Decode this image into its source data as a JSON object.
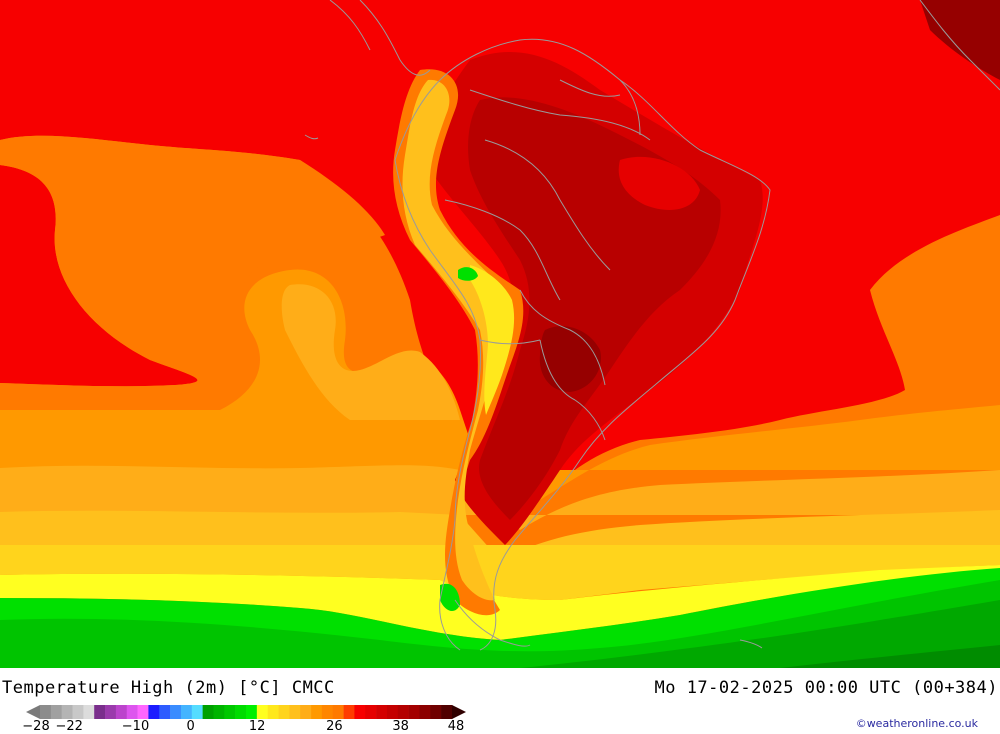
{
  "map": {
    "title": "Temperature High (2m) [°C] CMCC",
    "run_time": "Mo 17-02-2025 00:00 UTC (00+384)",
    "credit": "©weatheronline.co.uk",
    "region": "South America",
    "colors": {
      "darkest_red": "#b80000",
      "dark_red": "#cf0000",
      "red": "#f70000",
      "red_orange": "#ff3c00",
      "orange": "#ff7a00",
      "light_orange": "#ff9900",
      "amber": "#ffad18",
      "gold": "#ffc01c",
      "yellow_orange": "#ffd41c",
      "yellow": "#ffe81c",
      "bright_yellow": "#ffff20",
      "green": "#00e000",
      "mid_green": "#00c400",
      "dark_green": "#00a800",
      "border_gray": "#9a9a9a"
    }
  },
  "legend": {
    "ticks": [
      {
        "label": "-28",
        "value": -28
      },
      {
        "label": "-22",
        "value": -22
      },
      {
        "label": "-10",
        "value": -10
      },
      {
        "label": "0",
        "value": 0
      },
      {
        "label": "12",
        "value": 12
      },
      {
        "label": "26",
        "value": 26
      },
      {
        "label": "38",
        "value": 38
      },
      {
        "label": "48",
        "value": 48
      }
    ],
    "swatches": [
      "#8c8c8c",
      "#a0a0a0",
      "#b4b4b4",
      "#c8c8c8",
      "#dcdcdc",
      "#7a2e8c",
      "#9a3aac",
      "#bb44cc",
      "#dd55ee",
      "#ff66ff",
      "#1c1cff",
      "#2e5cff",
      "#3a8cff",
      "#44b4ff",
      "#55dcff",
      "#00a000",
      "#00b400",
      "#00c800",
      "#00dc00",
      "#00f000",
      "#ffff20",
      "#ffe81c",
      "#ffd41c",
      "#ffc01c",
      "#ffad18",
      "#ff9900",
      "#ff8600",
      "#ff7a00",
      "#ff3c00",
      "#f70000",
      "#e60000",
      "#d40000",
      "#c40000",
      "#b40000",
      "#a40000",
      "#8c0000",
      "#700000",
      "#500000"
    ]
  }
}
